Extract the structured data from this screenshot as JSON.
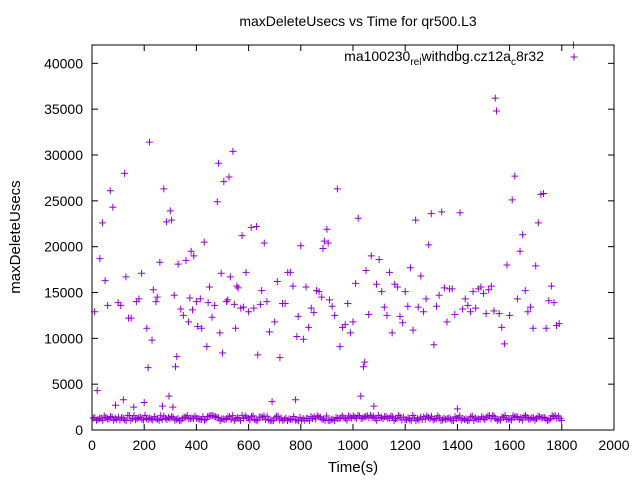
{
  "chart_data": {
    "type": "scatter",
    "title": "maxDeleteUsecs vs Time for qr500.L3",
    "xlabel": "Time(s)",
    "ylabel": "maxDeleteUsecs",
    "xlim": [
      0,
      2000
    ],
    "ylim": [
      0,
      42000
    ],
    "xticks": [
      0,
      200,
      400,
      600,
      800,
      1000,
      1200,
      1400,
      1600,
      1800,
      2000
    ],
    "yticks": [
      0,
      5000,
      10000,
      15000,
      20000,
      25000,
      30000,
      35000,
      40000
    ],
    "grid": false,
    "legend_position": "top-right",
    "marker": "+",
    "series": [
      {
        "name": "ma100230_rel_withdbg.cz12a_c8r32",
        "legend_parts": [
          "ma100230",
          "rel",
          "withdbg.cz12a",
          "c",
          "8r32"
        ],
        "color": "#9400d3",
        "baseline": {
          "from": 5,
          "to": 1800,
          "step": 6,
          "min": 1000,
          "max": 1600
        },
        "points": [
          [
            10,
            12900
          ],
          [
            20,
            4300
          ],
          [
            30,
            18700
          ],
          [
            40,
            22600
          ],
          [
            50,
            16300
          ],
          [
            60,
            13600
          ],
          [
            70,
            26100
          ],
          [
            80,
            24300
          ],
          [
            90,
            2700
          ],
          [
            100,
            13900
          ],
          [
            110,
            13600
          ],
          [
            120,
            3300
          ],
          [
            125,
            28000
          ],
          [
            130,
            16700
          ],
          [
            140,
            12200
          ],
          [
            150,
            12200
          ],
          [
            160,
            2500
          ],
          [
            170,
            14000
          ],
          [
            180,
            14300
          ],
          [
            190,
            17100
          ],
          [
            200,
            3000
          ],
          [
            210,
            11100
          ],
          [
            215,
            6800
          ],
          [
            220,
            31400
          ],
          [
            230,
            9800
          ],
          [
            235,
            15300
          ],
          [
            245,
            14000
          ],
          [
            250,
            14500
          ],
          [
            260,
            18300
          ],
          [
            270,
            2600
          ],
          [
            275,
            26300
          ],
          [
            285,
            22700
          ],
          [
            295,
            3700
          ],
          [
            300,
            23900
          ],
          [
            305,
            22900
          ],
          [
            310,
            2500
          ],
          [
            315,
            14700
          ],
          [
            320,
            6900
          ],
          [
            325,
            8000
          ],
          [
            330,
            18100
          ],
          [
            340,
            13200
          ],
          [
            350,
            12500
          ],
          [
            360,
            18500
          ],
          [
            370,
            11800
          ],
          [
            375,
            14400
          ],
          [
            380,
            19500
          ],
          [
            385,
            13100
          ],
          [
            390,
            19000
          ],
          [
            400,
            14000
          ],
          [
            405,
            11300
          ],
          [
            415,
            14300
          ],
          [
            420,
            11100
          ],
          [
            430,
            20500
          ],
          [
            440,
            9100
          ],
          [
            445,
            13900
          ],
          [
            450,
            15600
          ],
          [
            460,
            12300
          ],
          [
            470,
            13600
          ],
          [
            480,
            24900
          ],
          [
            485,
            29100
          ],
          [
            490,
            10600
          ],
          [
            495,
            17100
          ],
          [
            500,
            8400
          ],
          [
            505,
            27100
          ],
          [
            515,
            14000
          ],
          [
            520,
            14200
          ],
          [
            525,
            27600
          ],
          [
            530,
            16700
          ],
          [
            540,
            30400
          ],
          [
            545,
            13700
          ],
          [
            550,
            11100
          ],
          [
            555,
            15700
          ],
          [
            560,
            15500
          ],
          [
            570,
            13300
          ],
          [
            575,
            21200
          ],
          [
            580,
            13400
          ],
          [
            590,
            17200
          ],
          [
            600,
            12900
          ],
          [
            610,
            22100
          ],
          [
            620,
            13300
          ],
          [
            630,
            22200
          ],
          [
            635,
            8200
          ],
          [
            645,
            13700
          ],
          [
            650,
            15200
          ],
          [
            660,
            20400
          ],
          [
            670,
            14000
          ],
          [
            680,
            10700
          ],
          [
            690,
            3100
          ],
          [
            700,
            11800
          ],
          [
            710,
            16200
          ],
          [
            720,
            7900
          ],
          [
            730,
            13800
          ],
          [
            740,
            13800
          ],
          [
            750,
            17200
          ],
          [
            760,
            17200
          ],
          [
            770,
            15700
          ],
          [
            780,
            3300
          ],
          [
            785,
            10200
          ],
          [
            790,
            12400
          ],
          [
            800,
            20100
          ],
          [
            810,
            9900
          ],
          [
            820,
            15600
          ],
          [
            830,
            11200
          ],
          [
            840,
            13300
          ],
          [
            850,
            12800
          ],
          [
            860,
            15200
          ],
          [
            870,
            15100
          ],
          [
            880,
            14500
          ],
          [
            885,
            19800
          ],
          [
            890,
            20600
          ],
          [
            900,
            21900
          ],
          [
            905,
            20400
          ],
          [
            910,
            14200
          ],
          [
            920,
            13500
          ],
          [
            930,
            12500
          ],
          [
            940,
            26300
          ],
          [
            950,
            9100
          ],
          [
            960,
            11200
          ],
          [
            970,
            11500
          ],
          [
            980,
            13800
          ],
          [
            990,
            10600
          ],
          [
            1000,
            11800
          ],
          [
            1010,
            16000
          ],
          [
            1020,
            23100
          ],
          [
            1030,
            3700
          ],
          [
            1040,
            6900
          ],
          [
            1045,
            7400
          ],
          [
            1050,
            17400
          ],
          [
            1060,
            12600
          ],
          [
            1070,
            19000
          ],
          [
            1080,
            2600
          ],
          [
            1090,
            15900
          ],
          [
            1100,
            18600
          ],
          [
            1110,
            15100
          ],
          [
            1120,
            13400
          ],
          [
            1130,
            12500
          ],
          [
            1140,
            17200
          ],
          [
            1150,
            10600
          ],
          [
            1160,
            15900
          ],
          [
            1170,
            15600
          ],
          [
            1180,
            12400
          ],
          [
            1190,
            11700
          ],
          [
            1200,
            15100
          ],
          [
            1210,
            13500
          ],
          [
            1220,
            17700
          ],
          [
            1230,
            10900
          ],
          [
            1240,
            22900
          ],
          [
            1250,
            13400
          ],
          [
            1260,
            16800
          ],
          [
            1270,
            12900
          ],
          [
            1280,
            14300
          ],
          [
            1290,
            20200
          ],
          [
            1300,
            23600
          ],
          [
            1310,
            9300
          ],
          [
            1320,
            13500
          ],
          [
            1330,
            14700
          ],
          [
            1340,
            23800
          ],
          [
            1350,
            15500
          ],
          [
            1360,
            11800
          ],
          [
            1370,
            15400
          ],
          [
            1380,
            15400
          ],
          [
            1390,
            12600
          ],
          [
            1400,
            2300
          ],
          [
            1410,
            23700
          ],
          [
            1420,
            13200
          ],
          [
            1430,
            14300
          ],
          [
            1440,
            13600
          ],
          [
            1450,
            12900
          ],
          [
            1460,
            15100
          ],
          [
            1470,
            13300
          ],
          [
            1480,
            15400
          ],
          [
            1490,
            15600
          ],
          [
            1500,
            14900
          ],
          [
            1510,
            12700
          ],
          [
            1520,
            15300
          ],
          [
            1530,
            15700
          ],
          [
            1540,
            13000
          ],
          [
            1545,
            36200
          ],
          [
            1550,
            34800
          ],
          [
            1560,
            12700
          ],
          [
            1570,
            11200
          ],
          [
            1580,
            9400
          ],
          [
            1590,
            18000
          ],
          [
            1600,
            12500
          ],
          [
            1610,
            25100
          ],
          [
            1620,
            27700
          ],
          [
            1630,
            14300
          ],
          [
            1640,
            19500
          ],
          [
            1650,
            21300
          ],
          [
            1660,
            15200
          ],
          [
            1670,
            12900
          ],
          [
            1680,
            13400
          ],
          [
            1690,
            11100
          ],
          [
            1700,
            17900
          ],
          [
            1710,
            22600
          ],
          [
            1720,
            25700
          ],
          [
            1730,
            25800
          ],
          [
            1740,
            11100
          ],
          [
            1750,
            14100
          ],
          [
            1760,
            15700
          ],
          [
            1770,
            13900
          ],
          [
            1780,
            11400
          ],
          [
            1790,
            11600
          ],
          [
            1845,
            42000
          ]
        ]
      }
    ]
  }
}
